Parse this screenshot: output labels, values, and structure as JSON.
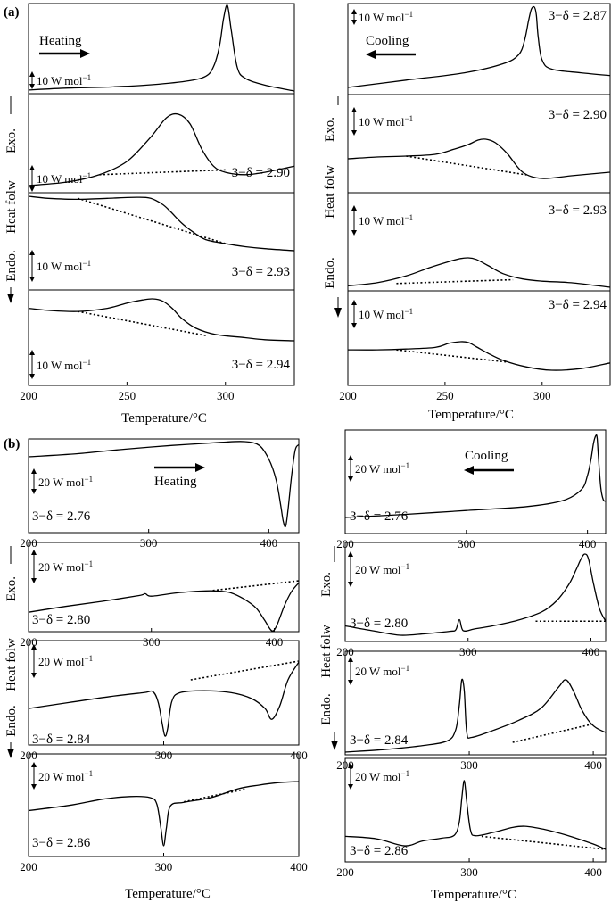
{
  "heat_flow_label": "Heat folw",
  "exo_label": "Exo.",
  "endo_label": "Endo.",
  "panel_labels": {
    "a": "(a)",
    "b": "(b)"
  },
  "colors": {
    "trace": "#000000",
    "frame": "#000000",
    "background": "#ffffff"
  },
  "chart_data": [
    {
      "id": "a-heating",
      "type": "line",
      "panel": "(a)",
      "mode": "Heating",
      "xlabel": "Temperature/°C",
      "xlim": [
        200,
        335
      ],
      "xticks": [
        200,
        250,
        300
      ],
      "subplots": [
        {
          "label": "",
          "scale": "10 W mol",
          "x": [
            200,
            220,
            240,
            260,
            280,
            290,
            294,
            297,
            299,
            301,
            303,
            306,
            310,
            320,
            335
          ],
          "y": [
            1.0,
            1.2,
            1.3,
            1.5,
            1.9,
            2.4,
            3.4,
            5.5,
            8.2,
            9.6,
            7.0,
            3.3,
            2.2,
            1.5,
            0.9
          ]
        },
        {
          "label": "3−δ = 2.90",
          "scale": "10 W mol",
          "baseline": [
            [
              236,
              0.9
            ],
            [
              300,
              1.3
            ]
          ],
          "x": [
            200,
            220,
            236,
            250,
            262,
            270,
            276,
            282,
            288,
            294,
            300,
            310,
            320,
            335
          ],
          "y": [
            0.0,
            0.3,
            0.9,
            2.0,
            4.0,
            5.6,
            5.9,
            5.1,
            3.0,
            1.6,
            1.1,
            0.9,
            1.1,
            1.6
          ]
        },
        {
          "label": "3−δ = 2.93",
          "scale": "10 W mol",
          "baseline": [
            [
              225,
              5.2
            ],
            [
              300,
              0.7
            ]
          ],
          "x": [
            200,
            210,
            225,
            240,
            255,
            262,
            268,
            272,
            278,
            284,
            290,
            300,
            310,
            320,
            335
          ],
          "y": [
            5.4,
            5.2,
            5.1,
            5.2,
            5.3,
            5.2,
            4.6,
            3.9,
            2.7,
            1.8,
            1.1,
            0.7,
            0.4,
            0.2,
            0.0
          ]
        },
        {
          "label": "3−δ = 2.94",
          "scale": "10 W mol",
          "baseline": [
            [
              225,
              3.0
            ],
            [
              290,
              0.7
            ]
          ],
          "x": [
            200,
            210,
            225,
            240,
            250,
            258,
            263,
            268,
            273,
            278,
            285,
            295,
            310,
            320,
            335
          ],
          "y": [
            3.3,
            3.1,
            3.0,
            3.3,
            3.8,
            4.1,
            4.2,
            4.0,
            3.3,
            2.3,
            1.4,
            0.8,
            0.5,
            0.3,
            0.2
          ]
        }
      ]
    },
    {
      "id": "a-cooling",
      "type": "line",
      "panel": "(a)",
      "mode": "Cooling",
      "xlabel": "Temperature/°C",
      "xlim": [
        200,
        335
      ],
      "xticks": [
        200,
        250,
        300
      ],
      "subplots": [
        {
          "label": "3−δ = 2.87",
          "scale": "10 W mol",
          "x": [
            200,
            230,
            260,
            280,
            288,
            291,
            293,
            294.5,
            296,
            297,
            298,
            300,
            305,
            320,
            335
          ],
          "y": [
            0.0,
            0.8,
            1.6,
            2.6,
            3.6,
            5.2,
            7.3,
            8.6,
            8.8,
            8.0,
            5.5,
            3.0,
            2.0,
            1.6,
            1.3
          ]
        },
        {
          "label": "3−δ = 2.90",
          "scale": "10 W mol",
          "baseline": [
            [
              230,
              4.2
            ],
            [
              292,
              2.1
            ]
          ],
          "x": [
            200,
            215,
            230,
            245,
            255,
            262,
            267,
            271,
            276,
            282,
            290,
            300,
            315,
            335
          ],
          "y": [
            3.9,
            4.1,
            4.2,
            4.4,
            5.0,
            5.5,
            6.0,
            6.1,
            5.7,
            4.5,
            2.4,
            1.7,
            2.0,
            2.4
          ]
        },
        {
          "label": "3−δ = 2.93",
          "scale": "10 W mol",
          "baseline": [
            [
              225,
              0.8
            ],
            [
              285,
              1.3
            ]
          ],
          "x": [
            200,
            215,
            230,
            242,
            252,
            258,
            262,
            266,
            272,
            280,
            290,
            300,
            315,
            335
          ],
          "y": [
            0.5,
            0.9,
            1.8,
            2.9,
            3.7,
            4.1,
            4.2,
            4.0,
            3.2,
            2.1,
            1.4,
            1.1,
            0.9,
            0.3
          ]
        },
        {
          "label": "3−δ = 2.94",
          "scale": "10 W mol",
          "baseline": [
            [
              225,
              3.0
            ],
            [
              282,
              1.5
            ]
          ],
          "x": [
            200,
            215,
            230,
            245,
            252,
            258,
            262,
            266,
            272,
            280,
            292,
            305,
            320,
            335
          ],
          "y": [
            3.0,
            3.0,
            3.1,
            3.3,
            3.8,
            4.0,
            3.9,
            3.4,
            2.6,
            1.7,
            0.9,
            0.5,
            0.7,
            1.4
          ]
        }
      ]
    },
    {
      "id": "b-heating",
      "type": "line",
      "panel": "(b)",
      "mode": "Heating",
      "xlabel": "Temperature/°C",
      "xlim": [
        200,
        420
      ],
      "xticks": [
        200,
        300,
        400
      ],
      "subplots": [
        {
          "label": "3−δ = 2.76",
          "scale": "20 W mol",
          "xlim": [
            200,
            425
          ],
          "x": [
            200,
            240,
            280,
            320,
            360,
            380,
            392,
            400,
            406,
            410,
            412,
            414,
            416,
            419,
            422,
            425
          ],
          "y": [
            0.0,
            0.4,
            1.0,
            1.5,
            1.9,
            2.0,
            1.5,
            -0.3,
            -3.0,
            -6.5,
            -8.5,
            -9.2,
            -7.0,
            -2.5,
            0.9,
            1.6
          ]
        },
        {
          "label": "3−δ = 2.80",
          "scale": "20 W mol",
          "xlim": [
            200,
            420
          ],
          "baseline": [
            [
              350,
              3.4
            ],
            [
              420,
              4.9
            ]
          ],
          "x": [
            200,
            230,
            260,
            290,
            295,
            300,
            320,
            340,
            355,
            365,
            375,
            385,
            392,
            398,
            402,
            408,
            414,
            420
          ],
          "y": [
            0.0,
            0.9,
            1.7,
            2.6,
            2.9,
            2.5,
            3.0,
            3.3,
            3.3,
            3.0,
            2.1,
            0.7,
            -1.2,
            -2.9,
            -2.1,
            0.9,
            3.2,
            4.6
          ]
        },
        {
          "label": "3−δ = 2.84",
          "scale": "20 W mol",
          "xlim": [
            200,
            400
          ],
          "baseline": [
            [
              320,
              2.9
            ],
            [
              400,
              4.8
            ]
          ],
          "x": [
            200,
            230,
            260,
            285,
            292,
            296,
            299,
            301,
            303,
            306,
            312,
            330,
            350,
            365,
            375,
            380,
            386,
            392,
            400
          ],
          "y": [
            0.0,
            0.6,
            1.2,
            1.6,
            1.7,
            0.6,
            -1.6,
            -2.8,
            -2.0,
            0.7,
            1.6,
            1.8,
            1.6,
            1.0,
            0.0,
            -1.1,
            0.3,
            2.9,
            4.7
          ]
        },
        {
          "label": "3−δ = 2.86",
          "scale": "20 W mol",
          "xlim": [
            200,
            400
          ],
          "baseline": [
            [
              315,
              1.7
            ],
            [
              360,
              4.1
            ]
          ],
          "x": [
            200,
            230,
            255,
            275,
            290,
            295,
            298,
            300,
            302,
            305,
            315,
            335,
            355,
            370,
            385,
            400
          ],
          "y": [
            0.0,
            1.0,
            2.2,
            2.7,
            2.5,
            1.2,
            -3.5,
            -6.8,
            -3.4,
            0.9,
            1.6,
            2.5,
            4.2,
            4.9,
            5.4,
            5.6
          ]
        }
      ]
    },
    {
      "id": "b-cooling",
      "type": "line",
      "panel": "(b)",
      "mode": "Cooling",
      "xlabel": "Temperature/°C",
      "xlim": [
        200,
        410
      ],
      "xticks": [
        200,
        300,
        400
      ],
      "subplots": [
        {
          "label": "3−δ = 2.76",
          "scale": "20 W mol",
          "xlim": [
            200,
            415
          ],
          "x": [
            200,
            250,
            300,
            350,
            380,
            395,
            400,
            403,
            405,
            407,
            408,
            409,
            411,
            413,
            415
          ],
          "y": [
            0.0,
            0.4,
            0.9,
            1.4,
            2.2,
            3.6,
            5.4,
            7.6,
            9.6,
            10.6,
            10.2,
            7.8,
            3.8,
            2.3,
            2.1
          ]
        },
        {
          "label": "3−δ = 2.80",
          "scale": "20 W mol",
          "xlim": [
            200,
            412
          ],
          "baseline": [
            [
              355,
              1.6
            ],
            [
              412,
              1.6
            ]
          ],
          "x": [
            200,
            225,
            245,
            265,
            285,
            290,
            293,
            296,
            305,
            320,
            340,
            360,
            372,
            382,
            388,
            392,
            395,
            398,
            402,
            407,
            412
          ],
          "y": [
            1.0,
            0.3,
            -0.2,
            0.0,
            0.3,
            0.5,
            1.8,
            0.4,
            0.6,
            1.0,
            1.7,
            2.8,
            4.2,
            6.3,
            8.2,
            9.6,
            10.2,
            9.6,
            6.5,
            3.2,
            1.6
          ]
        },
        {
          "label": "3−δ = 2.84",
          "scale": "20 W mol",
          "xlim": [
            200,
            410
          ],
          "baseline": [
            [
              335,
              0.8
            ],
            [
              400,
              2.3
            ]
          ],
          "x": [
            200,
            230,
            260,
            282,
            289,
            292,
            294,
            296,
            298,
            302,
            320,
            340,
            358,
            372,
            378,
            384,
            390,
            396,
            402,
            410
          ],
          "y": [
            0.0,
            0.2,
            0.5,
            0.9,
            1.8,
            3.8,
            5.9,
            5.0,
            1.6,
            1.2,
            1.8,
            2.6,
            3.6,
            5.3,
            5.9,
            5.0,
            3.6,
            2.6,
            2.0,
            1.6
          ]
        },
        {
          "label": "3−δ = 2.86",
          "scale": "20 W mol",
          "xlim": [
            200,
            410
          ],
          "baseline": [
            [
              310,
              1.6
            ],
            [
              410,
              -0.6
            ]
          ],
          "x": [
            200,
            225,
            248,
            262,
            278,
            288,
            292,
            294,
            296,
            298,
            301,
            305,
            320,
            335,
            345,
            360,
            380,
            400,
            410
          ],
          "y": [
            1.6,
            1.2,
            0.0,
            0.8,
            1.3,
            1.8,
            4.0,
            8.0,
            11.0,
            7.4,
            2.7,
            1.7,
            2.3,
            3.1,
            3.3,
            2.8,
            1.7,
            0.3,
            -0.6
          ]
        }
      ]
    }
  ]
}
